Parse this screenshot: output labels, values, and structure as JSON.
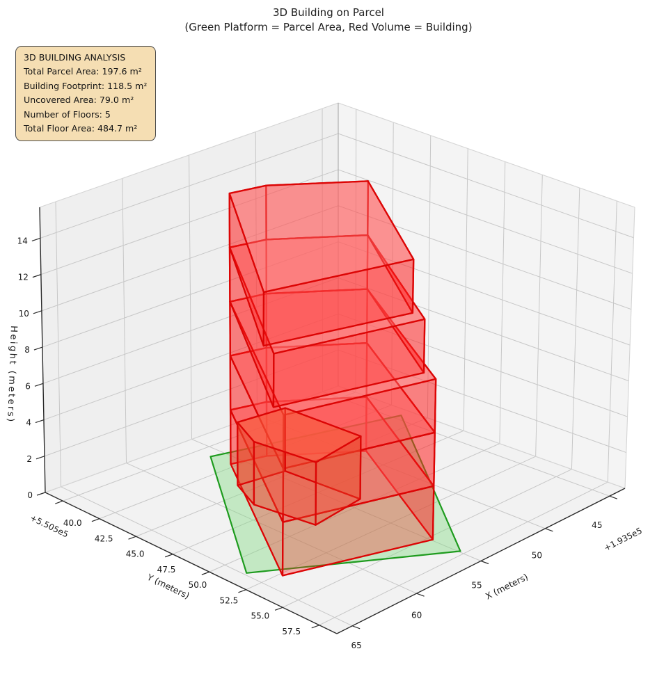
{
  "figure": {
    "title_line1": "3D Building on Parcel",
    "title_line2": "(Green Platform = Parcel Area, Red Volume = Building)"
  },
  "analysis_box": {
    "heading": "3D BUILDING ANALYSIS",
    "lines": [
      "Total Parcel Area: 197.6 m²",
      "Building Footprint: 118.5 m²",
      "Uncovered Area: 79.0 m²",
      "Number of Floors: 5",
      "Total Floor Area: 484.7 m²"
    ],
    "bg_color": "#f5deb3",
    "border_color": "#4a4a4a"
  },
  "chart_data": {
    "type": "3d-building-plot",
    "title": "3D Building on Parcel",
    "subtitle": "(Green Platform = Parcel Area, Red Volume = Building)",
    "legend_meaning": {
      "green_platform": "Parcel Area",
      "red_volume": "Building"
    },
    "stats": {
      "total_parcel_area_m2": 197.6,
      "building_footprint_m2": 118.5,
      "uncovered_area_m2": 79.0,
      "number_of_floors": 5,
      "total_floor_area_m2": 484.7
    },
    "x_axis": {
      "label": "X (meters)",
      "tick_values": [
        45,
        50,
        55,
        60,
        65
      ],
      "tick_labels": [
        "45",
        "50",
        "55",
        "60",
        "65"
      ],
      "offset_text": "+1.935e5",
      "lim": [
        43.8,
        66.2
      ],
      "grid": true
    },
    "y_axis": {
      "label": "Y (meters)",
      "tick_values": [
        40.0,
        42.5,
        45.0,
        47.5,
        50.0,
        52.5,
        55.0,
        57.5
      ],
      "tick_labels": [
        "40.0",
        "42.5",
        "45.0",
        "47.5",
        "50.0",
        "52.5",
        "55.0",
        "57.5"
      ],
      "offset_text": "+5.505e5",
      "lim": [
        38.8,
        58.7
      ],
      "grid": true
    },
    "z_axis": {
      "label": "Height (meters)",
      "tick_values": [
        0,
        2,
        4,
        6,
        8,
        10,
        12,
        14
      ],
      "tick_labels": [
        "0",
        "2",
        "4",
        "6",
        "8",
        "10",
        "12",
        "14"
      ],
      "lim": [
        0,
        15.7
      ],
      "grid": true
    },
    "parcel": {
      "description": "green platform polygon at z=0 (x,y in meters, offsets +1.935e5 / +5.505e5)",
      "polygon_xy": [
        [
          55.9,
          40.9
        ],
        [
          44.5,
          43.8
        ],
        [
          54.9,
          57.2
        ],
        [
          64.8,
          51.3
        ]
      ],
      "z": 0,
      "edge_color": "#1e9b1e",
      "fill_color": "rgba(130,220,130,0.42)"
    },
    "building": {
      "description": "red extruded volume, 5 stacked floors of 3 m",
      "floor_height_m": 3,
      "edge_color": "#dc0505",
      "side_fill": "rgba(255,32,32,0.32)",
      "top_fill": "rgba(255,110,110,0.46)",
      "floors": [
        {
          "level": 1,
          "z0": 0,
          "z1": 3,
          "footprint": [
            [
              55.8,
              42.2
            ],
            [
              53.6,
              42.7
            ],
            [
              49.3,
              45.7
            ],
            [
              54.9,
              55.3
            ],
            [
              63.6,
              52.7
            ]
          ]
        },
        {
          "level": 2,
          "z0": 3,
          "z1": 6,
          "footprint": [
            [
              55.8,
              42.2
            ],
            [
              53.6,
              42.7
            ],
            [
              49.3,
              45.7
            ],
            [
              54.9,
              55.3
            ],
            [
              63.6,
              52.7
            ]
          ]
        },
        {
          "level": 3,
          "z0": 6,
          "z1": 9,
          "footprint": [
            [
              55.8,
              42.2
            ],
            [
              53.6,
              42.7
            ],
            [
              49.3,
              45.7
            ],
            [
              54.9,
              55.3
            ],
            [
              63.6,
              52.7
            ]
          ]
        },
        {
          "level": 4,
          "z0": 9,
          "z1": 12,
          "footprint": [
            [
              55.8,
              42.2
            ],
            [
              53.6,
              42.7
            ],
            [
              49.3,
              45.7
            ],
            [
              54.8,
              54.4
            ],
            [
              63.35,
              51.8
            ]
          ]
        },
        {
          "level": 5,
          "z0": 12,
          "z1": 15,
          "footprint": [
            [
              55.8,
              42.2
            ],
            [
              53.6,
              42.7
            ],
            [
              49.3,
              45.7
            ],
            [
              54.7,
              53.5
            ],
            [
              63.1,
              50.9
            ]
          ]
        }
      ],
      "annex": {
        "description": "small red box on parcel in front of tower",
        "z0": 0,
        "z1": 3.5,
        "footprint": [
          [
            54.3,
            44.6
          ],
          [
            57.5,
            44.2
          ],
          [
            58.6,
            46.3
          ],
          [
            58.0,
            50.0
          ],
          [
            54.0,
            49.5
          ]
        ],
        "edge_color": "#dc0505",
        "fill": "rgba(235,75,45,0.36)"
      }
    }
  }
}
